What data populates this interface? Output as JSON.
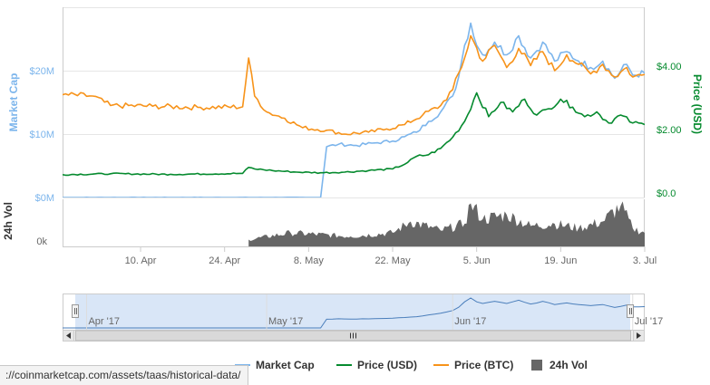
{
  "status_bar": {
    "url": "://coinmarketcap.com/assets/taas/historical-data/"
  },
  "chart_data": {
    "type": "line",
    "x_range": [
      "2017-03-28",
      "2017-07-03"
    ],
    "x_ticks": [
      "10. Apr",
      "24. Apr",
      "8. May",
      "22. May",
      "5. Jun",
      "19. Jun",
      "3. Jul"
    ],
    "left_axis": {
      "label": "Market Cap",
      "ticks": [
        "$0M",
        "$10M",
        "$20M"
      ],
      "range": [
        0,
        30
      ]
    },
    "right_axis": {
      "label": "Price (USD)",
      "ticks": [
        "$0.0",
        "$2.00",
        "$4.00"
      ],
      "range": [
        0,
        6
      ]
    },
    "volume_axis": {
      "label": "24h Vol",
      "ticks": [
        "0k"
      ]
    },
    "navigator": {
      "ticks": [
        "Apr '17",
        "May '17",
        "Jun '17",
        "Jul '17"
      ]
    },
    "series": [
      {
        "name": "Market Cap",
        "color": "#7cb5ec",
        "axis": "left",
        "points": [
          [
            "2017-03-28",
            0
          ],
          [
            "2017-05-10",
            0
          ],
          [
            "2017-05-11",
            8.0
          ],
          [
            "2017-05-13",
            8.4
          ],
          [
            "2017-05-16",
            8.2
          ],
          [
            "2017-05-19",
            8.6
          ],
          [
            "2017-05-22",
            8.9
          ],
          [
            "2017-05-24",
            9.6
          ],
          [
            "2017-05-26",
            10.3
          ],
          [
            "2017-05-28",
            12.0
          ],
          [
            "2017-05-30",
            13.5
          ],
          [
            "2017-06-01",
            16.0
          ],
          [
            "2017-06-02",
            19.0
          ],
          [
            "2017-06-03",
            24.0
          ],
          [
            "2017-06-04",
            27.5
          ],
          [
            "2017-06-05",
            24.0
          ],
          [
            "2017-06-06",
            22.5
          ],
          [
            "2017-06-08",
            24.5
          ],
          [
            "2017-06-10",
            22.5
          ],
          [
            "2017-06-12",
            25.5
          ],
          [
            "2017-06-14",
            22.0
          ],
          [
            "2017-06-16",
            24.5
          ],
          [
            "2017-06-18",
            21.5
          ],
          [
            "2017-06-20",
            23.0
          ],
          [
            "2017-06-22",
            21.5
          ],
          [
            "2017-06-24",
            20.5
          ],
          [
            "2017-06-26",
            21.5
          ],
          [
            "2017-06-28",
            18.8
          ],
          [
            "2017-06-30",
            21.0
          ],
          [
            "2017-07-01",
            19.3
          ],
          [
            "2017-07-03",
            19.6
          ]
        ]
      },
      {
        "name": "Price (USD)",
        "color": "#058a2e",
        "axis": "right",
        "points": [
          [
            "2017-03-28",
            0.72
          ],
          [
            "2017-04-05",
            0.75
          ],
          [
            "2017-04-15",
            0.73
          ],
          [
            "2017-04-27",
            0.76
          ],
          [
            "2017-04-28",
            0.95
          ],
          [
            "2017-04-29",
            0.9
          ],
          [
            "2017-05-02",
            0.85
          ],
          [
            "2017-05-06",
            0.8
          ],
          [
            "2017-05-10",
            0.78
          ],
          [
            "2017-05-14",
            0.8
          ],
          [
            "2017-05-18",
            0.85
          ],
          [
            "2017-05-22",
            0.9
          ],
          [
            "2017-05-24",
            1.05
          ],
          [
            "2017-05-26",
            1.3
          ],
          [
            "2017-05-28",
            1.35
          ],
          [
            "2017-05-30",
            1.55
          ],
          [
            "2017-06-01",
            1.9
          ],
          [
            "2017-06-03",
            2.4
          ],
          [
            "2017-06-05",
            3.3
          ],
          [
            "2017-06-07",
            2.55
          ],
          [
            "2017-06-09",
            3.0
          ],
          [
            "2017-06-11",
            2.7
          ],
          [
            "2017-06-13",
            3.1
          ],
          [
            "2017-06-15",
            2.6
          ],
          [
            "2017-06-17",
            2.8
          ],
          [
            "2017-06-19",
            3.1
          ],
          [
            "2017-06-21",
            2.85
          ],
          [
            "2017-06-23",
            2.55
          ],
          [
            "2017-06-25",
            2.7
          ],
          [
            "2017-06-27",
            2.35
          ],
          [
            "2017-06-29",
            2.6
          ],
          [
            "2017-07-01",
            2.35
          ],
          [
            "2017-07-03",
            2.3
          ]
        ]
      },
      {
        "name": "Price (BTC)",
        "color": "#f7931a",
        "axis": "left",
        "points": [
          [
            "2017-03-28",
            16.2
          ],
          [
            "2017-04-02",
            16.0
          ],
          [
            "2017-04-05",
            14.5
          ],
          [
            "2017-04-12",
            14.4
          ],
          [
            "2017-04-20",
            14.2
          ],
          [
            "2017-04-27",
            14.3
          ],
          [
            "2017-04-28",
            22.0
          ],
          [
            "2017-04-29",
            16.0
          ],
          [
            "2017-05-01",
            13.5
          ],
          [
            "2017-05-04",
            12.5
          ],
          [
            "2017-05-07",
            11.0
          ],
          [
            "2017-05-11",
            10.6
          ],
          [
            "2017-05-14",
            10.0
          ],
          [
            "2017-05-18",
            10.3
          ],
          [
            "2017-05-21",
            10.8
          ],
          [
            "2017-05-24",
            11.5
          ],
          [
            "2017-05-27",
            13.0
          ],
          [
            "2017-05-30",
            14.5
          ],
          [
            "2017-06-01",
            17.0
          ],
          [
            "2017-06-03",
            22.0
          ],
          [
            "2017-06-04",
            25.5
          ],
          [
            "2017-06-06",
            21.5
          ],
          [
            "2017-06-08",
            24.0
          ],
          [
            "2017-06-10",
            20.5
          ],
          [
            "2017-06-12",
            23.5
          ],
          [
            "2017-06-14",
            20.8
          ],
          [
            "2017-06-16",
            23.0
          ],
          [
            "2017-06-18",
            20.0
          ],
          [
            "2017-06-20",
            22.5
          ],
          [
            "2017-06-22",
            21.0
          ],
          [
            "2017-06-24",
            19.5
          ],
          [
            "2017-06-26",
            21.0
          ],
          [
            "2017-06-28",
            19.0
          ],
          [
            "2017-06-30",
            20.5
          ],
          [
            "2017-07-01",
            19.0
          ],
          [
            "2017-07-03",
            19.4
          ]
        ]
      },
      {
        "name": "24h Vol",
        "color": "#666666",
        "axis": "volume",
        "points": [
          [
            "2017-04-28",
            0.15
          ],
          [
            "2017-05-05",
            0.3
          ],
          [
            "2017-05-15",
            0.22
          ],
          [
            "2017-05-22",
            0.3
          ],
          [
            "2017-05-25",
            0.55
          ],
          [
            "2017-05-30",
            0.35
          ],
          [
            "2017-06-03",
            0.5
          ],
          [
            "2017-06-04",
            0.95
          ],
          [
            "2017-06-06",
            0.6
          ],
          [
            "2017-06-10",
            0.7
          ],
          [
            "2017-06-14",
            0.45
          ],
          [
            "2017-06-18",
            0.5
          ],
          [
            "2017-06-22",
            0.4
          ],
          [
            "2017-06-26",
            0.55
          ],
          [
            "2017-06-29",
            0.9
          ],
          [
            "2017-07-01",
            0.4
          ],
          [
            "2017-07-03",
            0.3
          ]
        ]
      }
    ]
  }
}
